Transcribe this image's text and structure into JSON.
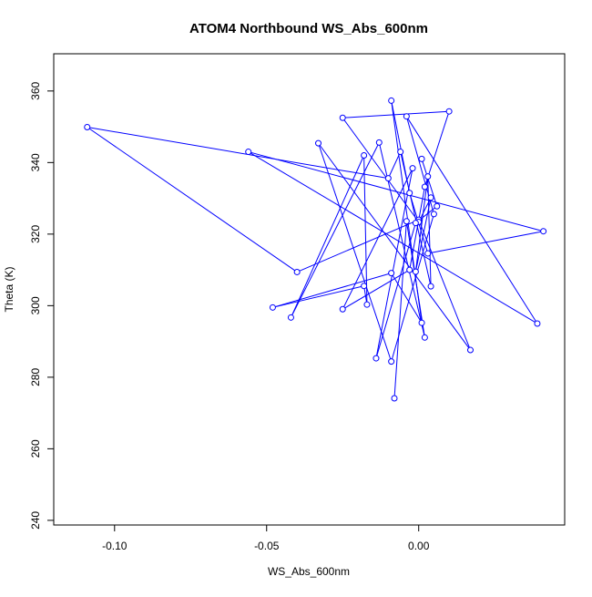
{
  "chart_data": {
    "type": "line",
    "title": "ATOM4 Northbound WS_Abs_600nm",
    "xlabel": "WS_Abs_600nm",
    "ylabel": "Theta (K)",
    "xlim": [
      -0.12,
      0.048
    ],
    "ylim": [
      238.7,
      370.4
    ],
    "x_ticks": [
      -0.1,
      -0.05,
      0.0
    ],
    "x_tick_labels": [
      "-0.10",
      "-0.05",
      "0.00"
    ],
    "y_ticks": [
      240,
      260,
      280,
      300,
      320,
      340,
      360
    ],
    "y_tick_labels": [
      "240",
      "260",
      "280",
      "300",
      "320",
      "340",
      "360"
    ],
    "grid": false,
    "marker": "open-circle",
    "colors": {
      "series": "#0000ff",
      "axes": "#000000"
    },
    "series": [
      {
        "points": [
          {
            "x": -0.008,
            "y": 274.1
          },
          {
            "x": -0.004,
            "y": 323.6
          },
          {
            "x": 0.002,
            "y": 291.1
          },
          {
            "x": -0.013,
            "y": 345.6
          },
          {
            "x": -0.042,
            "y": 296.7
          },
          {
            "x": -0.018,
            "y": 342.0
          },
          {
            "x": -0.017,
            "y": 300.3
          },
          {
            "x": -0.018,
            "y": 305.5
          },
          {
            "x": -0.048,
            "y": 299.5
          },
          {
            "x": -0.009,
            "y": 309.1
          },
          {
            "x": 0.001,
            "y": 295.2
          },
          {
            "x": -0.009,
            "y": 357.3
          },
          {
            "x": -0.003,
            "y": 331.5
          },
          {
            "x": 0.003,
            "y": 314.6
          },
          {
            "x": 0.041,
            "y": 320.8
          },
          {
            "x": -0.056,
            "y": 343.0
          },
          {
            "x": 0.039,
            "y": 295.0
          },
          {
            "x": -0.004,
            "y": 352.9
          },
          {
            "x": 0.005,
            "y": 325.6
          },
          {
            "x": -0.009,
            "y": 284.4
          },
          {
            "x": -0.033,
            "y": 345.4
          },
          {
            "x": 0.017,
            "y": 287.6
          },
          {
            "x": 0.0,
            "y": 324.0
          },
          {
            "x": -0.04,
            "y": 309.4
          },
          {
            "x": -0.109,
            "y": 349.9
          },
          {
            "x": -0.01,
            "y": 335.6
          },
          {
            "x": -0.006,
            "y": 343.0
          },
          {
            "x": 0.004,
            "y": 305.4
          },
          {
            "x": 0.003,
            "y": 336.1
          },
          {
            "x": -0.001,
            "y": 309.5
          },
          {
            "x": 0.004,
            "y": 330.2
          },
          {
            "x": 0.0,
            "y": 323.4
          },
          {
            "x": -0.025,
            "y": 352.5
          },
          {
            "x": 0.01,
            "y": 354.3
          },
          {
            "x": 0.002,
            "y": 333.2
          },
          {
            "x": -0.003,
            "y": 310.0
          },
          {
            "x": -0.025,
            "y": 299.0
          },
          {
            "x": -0.002,
            "y": 338.4
          },
          {
            "x": -0.014,
            "y": 285.3
          },
          {
            "x": -0.001,
            "y": 323.1
          },
          {
            "x": 0.006,
            "y": 327.8
          },
          {
            "x": 0.001,
            "y": 341.0
          }
        ]
      }
    ]
  }
}
